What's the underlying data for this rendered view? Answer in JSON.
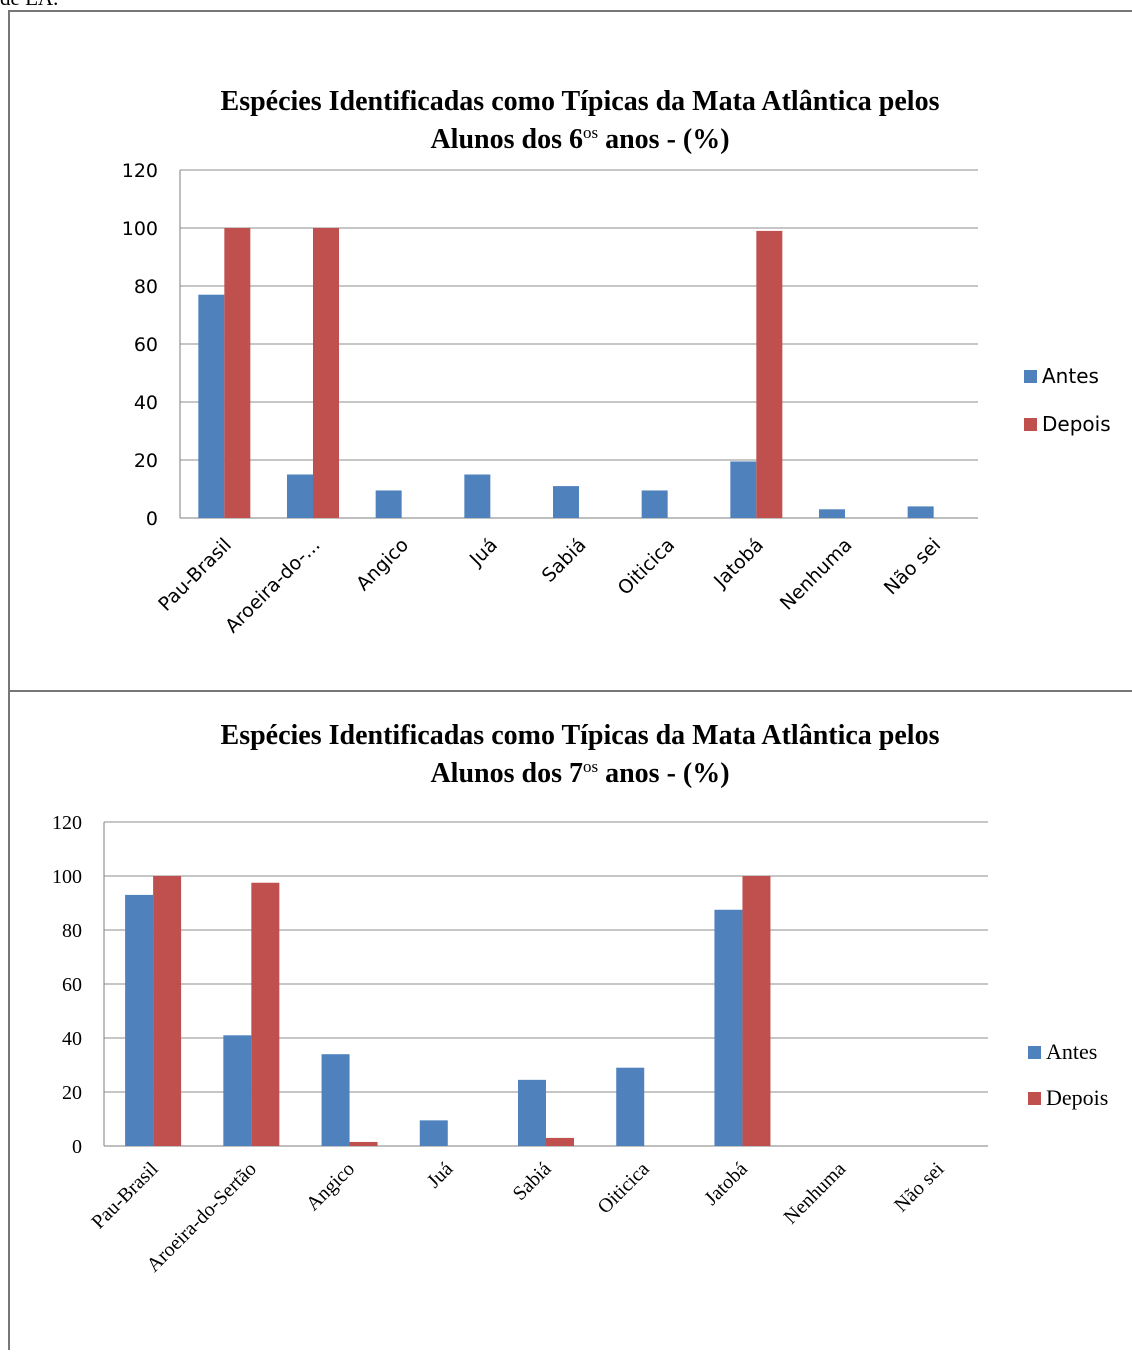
{
  "page": {
    "top_text": "de EA."
  },
  "colors": {
    "antes": "#4F81BD",
    "depois": "#C0504D",
    "grid": "#8c8c8c",
    "axis": "#7f7f7f"
  },
  "chart_data": [
    {
      "type": "bar",
      "title_line1": "Espécies Identificadas como Típicas da Mata Atlântica pelos",
      "title_line2_pre": "Alunos dos 6",
      "title_line2_sup": "os",
      "title_line2_post": " anos - (%)",
      "categories": [
        "Pau-Brasil",
        "Aroeira-do-...",
        "Angico",
        "Juá",
        "Sabiá",
        "Oiticica",
        "Jatobá",
        "Nenhuma",
        "Não sei"
      ],
      "series": [
        {
          "name": "Antes",
          "values": [
            77,
            15,
            9.5,
            15,
            11,
            9.5,
            19.5,
            3,
            4
          ]
        },
        {
          "name": "Depois",
          "values": [
            100,
            100,
            0,
            0,
            0,
            0,
            99,
            0,
            0
          ]
        }
      ],
      "yticks": [
        "0",
        "20",
        "40",
        "60",
        "80",
        "100",
        "120"
      ],
      "ylim": [
        0,
        120
      ],
      "grid": true,
      "legend": "right"
    },
    {
      "type": "bar",
      "title_line1": "Espécies Identificadas como Típicas da Mata Atlântica pelos",
      "title_line2_pre": "Alunos dos 7",
      "title_line2_sup": "os",
      "title_line2_post": " anos - (%)",
      "categories": [
        "Pau-Brasil",
        "Aroeira-do-Sertão",
        "Angico",
        "Juá",
        "Sabiá",
        "Oiticica",
        "Jatobá",
        "Nenhuma",
        "Não sei"
      ],
      "series": [
        {
          "name": "Antes",
          "values": [
            93,
            41,
            34,
            9.5,
            24.5,
            29,
            87.5,
            0,
            0
          ]
        },
        {
          "name": "Depois",
          "values": [
            100,
            97.5,
            1.5,
            0,
            3,
            0,
            100,
            0,
            0
          ]
        }
      ],
      "yticks": [
        "0",
        "20",
        "40",
        "60",
        "80",
        "100",
        "120"
      ],
      "ylim": [
        0,
        120
      ],
      "grid": true,
      "legend": "right"
    }
  ]
}
